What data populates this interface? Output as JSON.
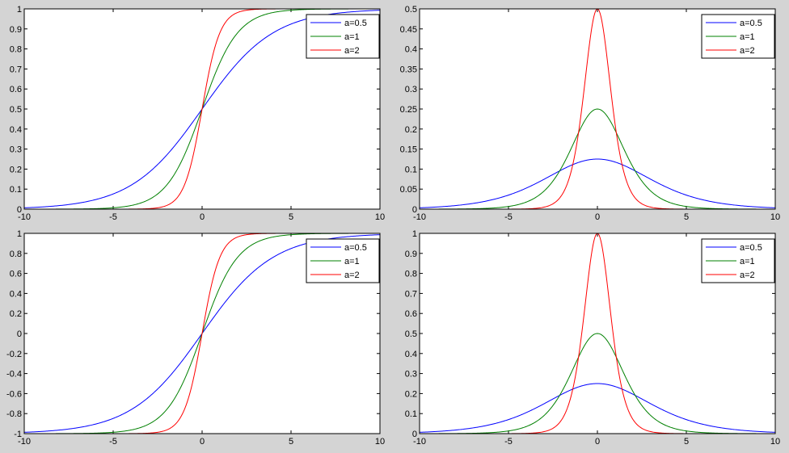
{
  "figure": {
    "background": "#d4d4d4"
  },
  "chart_data": [
    {
      "type": "line",
      "function": "sigmoid",
      "x": [
        -10,
        10
      ],
      "xlim": [
        -10,
        10
      ],
      "ylim": [
        0,
        1
      ],
      "xticks": [
        "-10",
        "-5",
        "0",
        "5",
        "10"
      ],
      "yticks": [
        "0",
        "0.1",
        "0.2",
        "0.3",
        "0.4",
        "0.5",
        "0.6",
        "0.7",
        "0.8",
        "0.9",
        "1"
      ],
      "legend_position": "top-right",
      "series": [
        {
          "name": "a=0.5",
          "a": 0.5,
          "color": "#0000ff"
        },
        {
          "name": "a=1",
          "a": 1,
          "color": "#008000"
        },
        {
          "name": "a=2",
          "a": 2,
          "color": "#ff0000"
        }
      ]
    },
    {
      "type": "line",
      "function": "sigmoid_derivative",
      "x": [
        -10,
        10
      ],
      "xlim": [
        -10,
        10
      ],
      "ylim": [
        0,
        0.5
      ],
      "xticks": [
        "-10",
        "-5",
        "0",
        "5",
        "10"
      ],
      "yticks": [
        "0",
        "0.05",
        "0.1",
        "0.15",
        "0.2",
        "0.25",
        "0.3",
        "0.35",
        "0.4",
        "0.45",
        "0.5"
      ],
      "legend_position": "top-right",
      "series": [
        {
          "name": "a=0.5",
          "a": 0.5,
          "color": "#0000ff"
        },
        {
          "name": "a=1",
          "a": 1,
          "color": "#008000"
        },
        {
          "name": "a=2",
          "a": 2,
          "color": "#ff0000"
        }
      ]
    },
    {
      "type": "line",
      "function": "tanh_scaled",
      "x": [
        -10,
        10
      ],
      "xlim": [
        -10,
        10
      ],
      "ylim": [
        -1,
        1
      ],
      "xticks": [
        "-10",
        "-5",
        "0",
        "5",
        "10"
      ],
      "yticks": [
        "-1",
        "-0.8",
        "-0.6",
        "-0.4",
        "-0.2",
        "0",
        "0.2",
        "0.4",
        "0.6",
        "0.8",
        "1"
      ],
      "legend_position": "top-right",
      "series": [
        {
          "name": "a=0.5",
          "a": 0.5,
          "color": "#0000ff"
        },
        {
          "name": "a=1",
          "a": 1,
          "color": "#008000"
        },
        {
          "name": "a=2",
          "a": 2,
          "color": "#ff0000"
        }
      ]
    },
    {
      "type": "line",
      "function": "tanh_scaled_derivative",
      "x": [
        -10,
        10
      ],
      "xlim": [
        -10,
        10
      ],
      "ylim": [
        0,
        1
      ],
      "xticks": [
        "-10",
        "-5",
        "0",
        "5",
        "10"
      ],
      "yticks": [
        "0",
        "0.1",
        "0.2",
        "0.3",
        "0.4",
        "0.5",
        "0.6",
        "0.7",
        "0.8",
        "0.9",
        "1"
      ],
      "legend_position": "top-right",
      "series": [
        {
          "name": "a=0.5",
          "a": 0.5,
          "color": "#0000ff"
        },
        {
          "name": "a=1",
          "a": 1,
          "color": "#008000"
        },
        {
          "name": "a=2",
          "a": 2,
          "color": "#ff0000"
        }
      ]
    }
  ]
}
